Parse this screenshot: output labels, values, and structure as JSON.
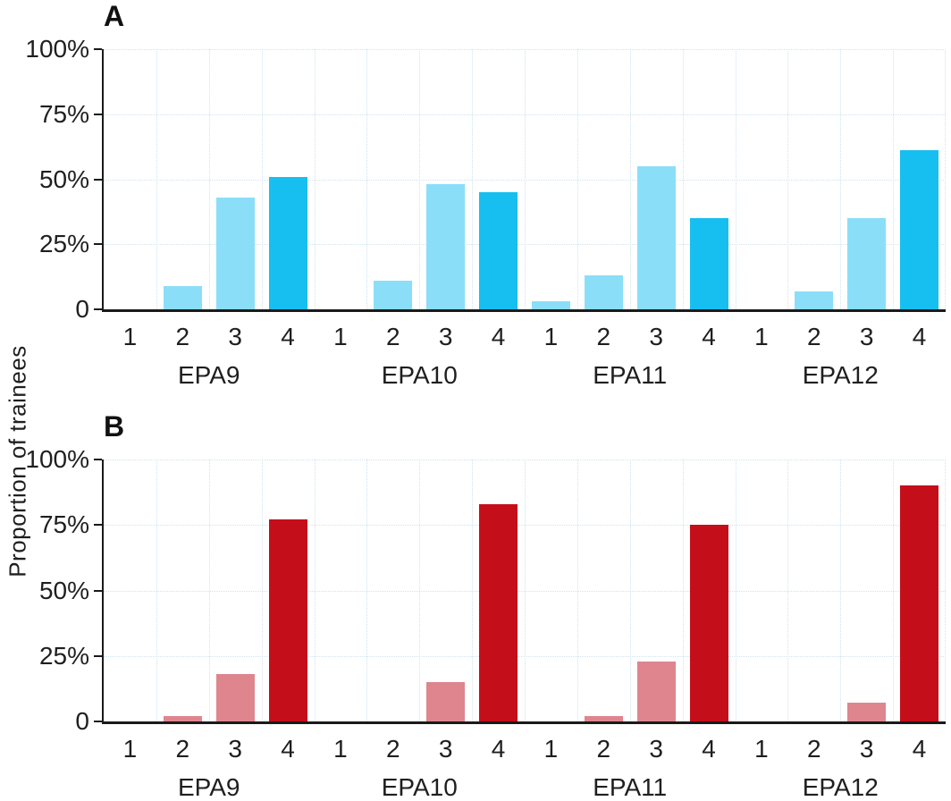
{
  "figure": {
    "ylabel": "Proportion of trainees"
  },
  "colors": {
    "panel_a_bar_light": "#8BDEF8",
    "panel_a_bar_dark": "#16BFEF",
    "panel_b_bar_light": "#DE858E",
    "panel_b_bar_dark": "#C40F1B",
    "gridline": "#cfe3ef",
    "axis": "#1a1a1a",
    "text": "#1f1f1f"
  },
  "y_axis": {
    "ticks": [
      "0",
      "25%",
      "50%",
      "75%",
      "100%"
    ],
    "tick_values": [
      0,
      25,
      50,
      75,
      100
    ],
    "max": 100
  },
  "chart_data": [
    {
      "type": "bar",
      "panel_label": "A",
      "title": "",
      "xlabel": "",
      "ylabel": "Proportion of trainees",
      "ylim": [
        0,
        100
      ],
      "grid": "dotted horizontal and vertical",
      "legend": "none",
      "categories": [
        "EPA9",
        "EPA10",
        "EPA11",
        "EPA12"
      ],
      "levels": [
        "1",
        "2",
        "3",
        "4"
      ],
      "series": [
        {
          "name": "EPA9",
          "values": [
            0,
            9,
            43,
            51
          ]
        },
        {
          "name": "EPA10",
          "values": [
            0,
            11,
            48,
            45
          ]
        },
        {
          "name": "EPA11",
          "values": [
            3,
            13,
            55,
            35
          ]
        },
        {
          "name": "EPA12",
          "values": [
            0,
            7,
            35,
            61
          ]
        }
      ],
      "bar_color_levels_1_3": "#8BDEF8",
      "bar_color_level_4": "#16BFEF"
    },
    {
      "type": "bar",
      "panel_label": "B",
      "title": "",
      "xlabel": "",
      "ylabel": "Proportion of trainees",
      "ylim": [
        0,
        100
      ],
      "grid": "dotted horizontal and vertical",
      "legend": "none",
      "categories": [
        "EPA9",
        "EPA10",
        "EPA11",
        "EPA12"
      ],
      "levels": [
        "1",
        "2",
        "3",
        "4"
      ],
      "series": [
        {
          "name": "EPA9",
          "values": [
            0,
            2,
            18,
            77
          ]
        },
        {
          "name": "EPA10",
          "values": [
            0,
            0,
            15,
            83
          ]
        },
        {
          "name": "EPA11",
          "values": [
            0,
            2,
            23,
            75
          ]
        },
        {
          "name": "EPA12",
          "values": [
            0,
            0,
            7,
            90
          ]
        }
      ],
      "bar_color_levels_1_3": "#DE858E",
      "bar_color_level_4": "#C40F1B"
    }
  ]
}
